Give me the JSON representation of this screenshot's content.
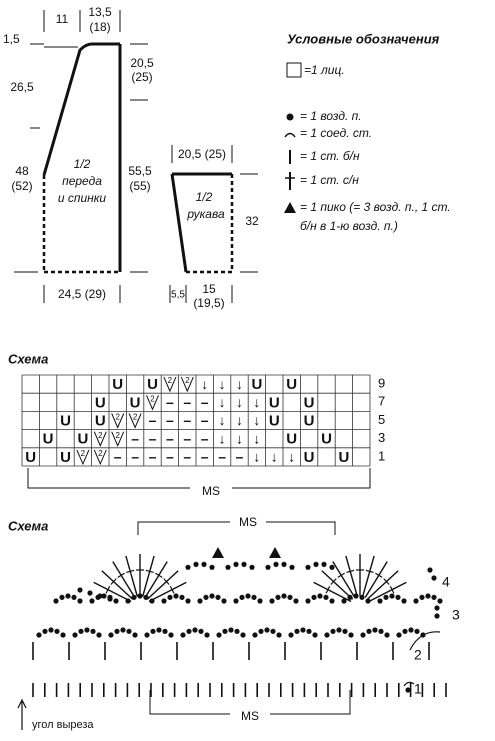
{
  "schematic": {
    "front": {
      "top_left": "1,5",
      "neck_width": "11",
      "shoulder": "13,5",
      "shoulder_alt": "(18)",
      "neck_depth": "26,5",
      "armhole": "20,5",
      "armhole_alt": "(25)",
      "side": "48",
      "side_alt": "(52)",
      "label_1": "1/2",
      "label_2": "переда",
      "label_3": "и спинки",
      "length": "55,5",
      "length_alt": "(55)",
      "width": "24,5 (29)"
    },
    "sleeve": {
      "top": "20,5 (25)",
      "label_1": "1/2",
      "label_2": "рукава",
      "length": "32",
      "offset": "5,5",
      "bottom": "15",
      "bottom_alt": "(19,5)"
    }
  },
  "legend": {
    "title": "Условные обозначения",
    "items": [
      "=1 лиц.",
      "= 1 возд. п.",
      "= 1 соед. ст.",
      "= 1 ст. б/н",
      "= 1 ст. с/н",
      "= 1 пико (= 3 возд. п., 1 ст.",
      "б/н в 1-ю возд. п.)"
    ]
  },
  "chart1": {
    "title": "Схема",
    "row_labels": [
      "9",
      "7",
      "5",
      "3",
      "1"
    ],
    "rows": [
      [
        null,
        null,
        null,
        null,
        null,
        "U",
        null,
        "U",
        "2",
        "2",
        "↓",
        "↓",
        "↓",
        "U",
        null,
        "U",
        null,
        null,
        null,
        null
      ],
      [
        null,
        null,
        null,
        null,
        "U",
        null,
        "U",
        "2",
        "–",
        "–",
        "–",
        "↓",
        "↓",
        "↓",
        "U",
        null,
        "U",
        null,
        null,
        null
      ],
      [
        null,
        null,
        "U",
        null,
        "U",
        "2",
        "2",
        "–",
        "–",
        "–",
        "–",
        "↓",
        "↓",
        "↓",
        "U",
        null,
        "U",
        null,
        null,
        null
      ],
      [
        null,
        "U",
        null,
        "U",
        "2",
        "2",
        "–",
        "–",
        "–",
        "–",
        "–",
        "↓",
        "↓",
        "↓",
        null,
        "U",
        null,
        "U",
        null,
        null
      ],
      [
        "U",
        null,
        "U",
        "2",
        "2",
        "–",
        "–",
        "–",
        "–",
        "–",
        "–",
        "–",
        "–",
        "↓",
        "↓",
        "↓",
        "U",
        null,
        "U",
        null
      ]
    ],
    "repeat": "MS"
  },
  "chart2": {
    "title": "Схема",
    "repeat_top": "MS",
    "repeat_bottom": "MS",
    "row_labels": [
      "4",
      "3",
      "2",
      "1"
    ],
    "start_note": "угол выреза"
  }
}
